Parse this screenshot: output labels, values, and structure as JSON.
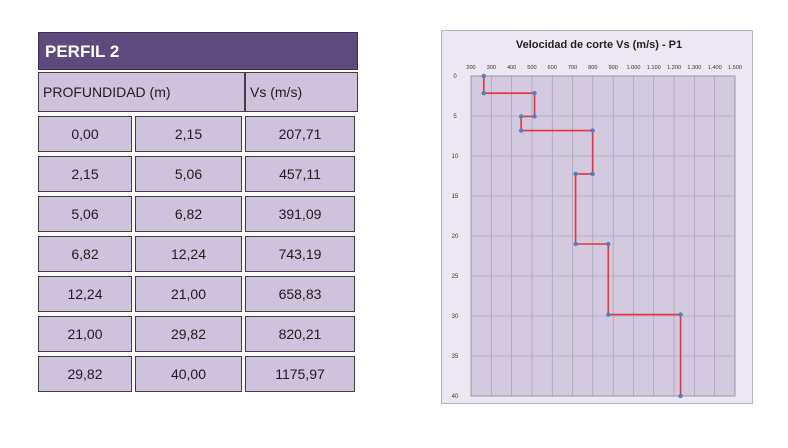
{
  "table": {
    "title": "PERFIL 2",
    "header_depth": "PROFUNDIDAD (m)",
    "header_vs": "Vs (m/s)",
    "rows": [
      {
        "from": "0,00",
        "to": "2,15",
        "vs": "207,71"
      },
      {
        "from": "2,15",
        "to": "5,06",
        "vs": "457,11"
      },
      {
        "from": "5,06",
        "to": "6,82",
        "vs": "391,09"
      },
      {
        "from": "6,82",
        "to": "12,24",
        "vs": "743,19"
      },
      {
        "from": "12,24",
        "to": "21,00",
        "vs": "658,83"
      },
      {
        "from": "21,00",
        "to": "29,82",
        "vs": "820,21"
      },
      {
        "from": "29,82",
        "to": "40,00",
        "vs": "1175,97"
      }
    ]
  },
  "chart_data": {
    "type": "line",
    "title": "Velocidad de corte Vs (m/s) - P1",
    "xlabel": "",
    "ylabel": "",
    "x_axis_position": "top",
    "y_axis_reversed": true,
    "xlim": [
      200,
      1500
    ],
    "ylim": [
      0,
      40
    ],
    "x_ticks": [
      "200",
      "300",
      "400",
      "500",
      "600",
      "700",
      "800",
      "900",
      "1.000",
      "1.100",
      "1.200",
      "1.300",
      "1.400",
      "1.500"
    ],
    "y_ticks": [
      "0",
      "5",
      "10",
      "15",
      "20",
      "25",
      "30",
      "35",
      "40"
    ],
    "grid": true,
    "colors": {
      "line": "#e8323c",
      "marker": "#4f7fc4",
      "plot_bg": "#d3cae0",
      "frame_bg": "#ece7f2"
    },
    "series": [
      {
        "x": [
          263,
          263,
          513,
          513,
          447,
          447,
          799,
          799,
          715,
          715,
          876,
          876,
          1232,
          1232
        ],
        "y": [
          0,
          2.15,
          2.15,
          5.06,
          5.06,
          6.82,
          6.82,
          12.24,
          12.24,
          21.0,
          21.0,
          29.82,
          29.82,
          40.0
        ]
      }
    ]
  }
}
